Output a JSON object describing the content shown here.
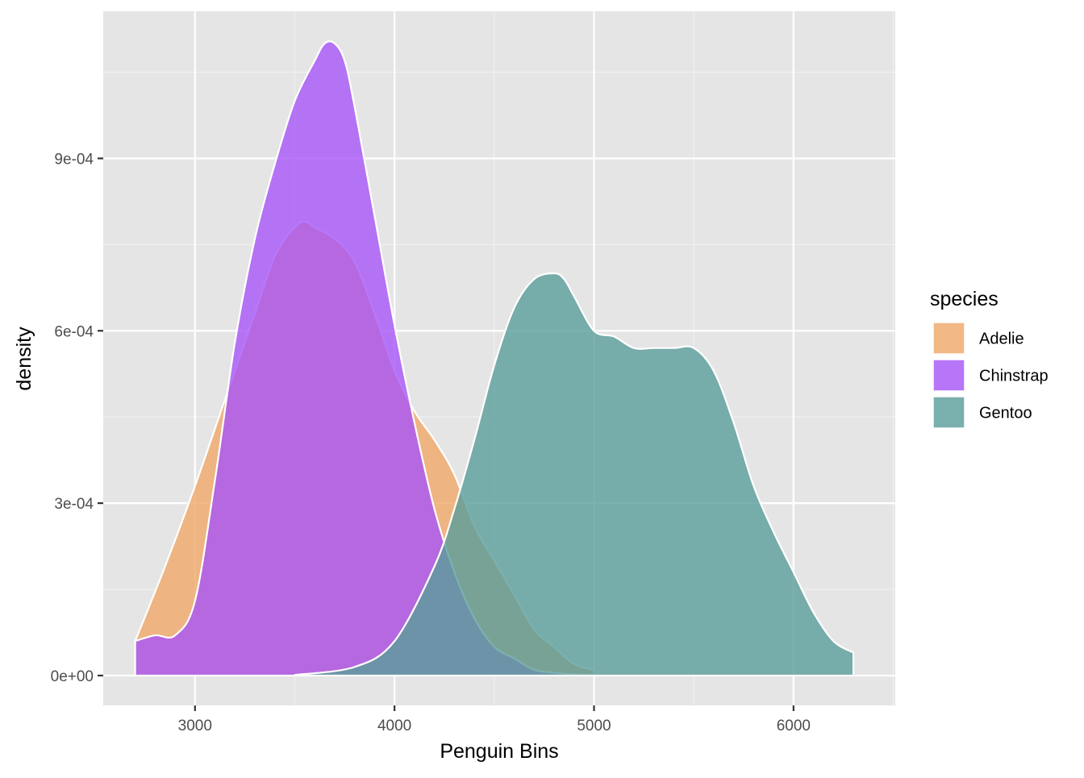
{
  "chart_data": {
    "type": "area",
    "subtype": "density",
    "xlabel": "Penguin Bins",
    "ylabel": "density",
    "xlim": [
      2540,
      6510
    ],
    "ylim": [
      -5.2e-05,
      0.001156
    ],
    "x_ticks": [
      3000,
      4000,
      5000,
      6000
    ],
    "x_tick_labels": [
      "3000",
      "4000",
      "5000",
      "6000"
    ],
    "y_ticks": [
      0,
      0.0003,
      0.0006,
      0.0009
    ],
    "y_tick_labels": [
      "0e+00",
      "3e-04",
      "6e-04",
      "9e-04"
    ],
    "grid": true,
    "legend": {
      "title": "species",
      "position": "right",
      "entries": [
        "Adelie",
        "Chinstrap",
        "Gentoo"
      ]
    },
    "series": [
      {
        "name": "Adelie",
        "color": "#f0a868",
        "x": [
          2700,
          2850,
          3000,
          3150,
          3300,
          3400,
          3500,
          3550,
          3600,
          3700,
          3800,
          3900,
          4000,
          4100,
          4200,
          4300,
          4400,
          4500,
          4600,
          4700,
          4800,
          4900,
          5000
        ],
        "y": [
          6e-05,
          0.00019,
          0.00033,
          0.00048,
          0.00063,
          0.00073,
          0.00078,
          0.00079,
          0.00078,
          0.00076,
          0.00072,
          0.00063,
          0.00053,
          0.00046,
          0.00041,
          0.00035,
          0.00026,
          0.0002,
          0.00014,
          8e-05,
          5e-05,
          2e-05,
          1e-05
        ]
      },
      {
        "name": "Chinstrap",
        "color": "#a855f7",
        "x": [
          2700,
          2800,
          2900,
          3000,
          3100,
          3200,
          3300,
          3400,
          3500,
          3600,
          3650,
          3700,
          3750,
          3800,
          3900,
          4000,
          4100,
          4200,
          4300,
          4400,
          4500,
          4600,
          4700,
          4800,
          4900,
          5000
        ],
        "y": [
          6e-05,
          7e-05,
          7e-05,
          0.00013,
          0.00034,
          0.00058,
          0.00076,
          0.00089,
          0.001,
          0.00107,
          0.0011,
          0.0011,
          0.00107,
          0.00099,
          0.0008,
          0.00061,
          0.00044,
          0.00029,
          0.00018,
          0.0001,
          5e-05,
          3e-05,
          1e-05,
          5e-06,
          2e-06,
          1e-06
        ]
      },
      {
        "name": "Gentoo",
        "color": "#5a9e9a",
        "x": [
          3500,
          3800,
          4000,
          4200,
          4300,
          4400,
          4500,
          4600,
          4700,
          4800,
          4850,
          4900,
          5000,
          5100,
          5200,
          5300,
          5400,
          5500,
          5600,
          5700,
          5800,
          5900,
          6000,
          6100,
          6200,
          6300
        ],
        "y": [
          1e-06,
          1.5e-05,
          6e-05,
          0.00019,
          0.00029,
          0.00041,
          0.00054,
          0.00064,
          0.00069,
          0.0007,
          0.00069,
          0.00066,
          0.0006,
          0.00059,
          0.00057,
          0.00057,
          0.00057,
          0.00057,
          0.00053,
          0.00044,
          0.00033,
          0.00025,
          0.00018,
          0.00011,
          6e-05,
          4e-05
        ]
      }
    ]
  }
}
